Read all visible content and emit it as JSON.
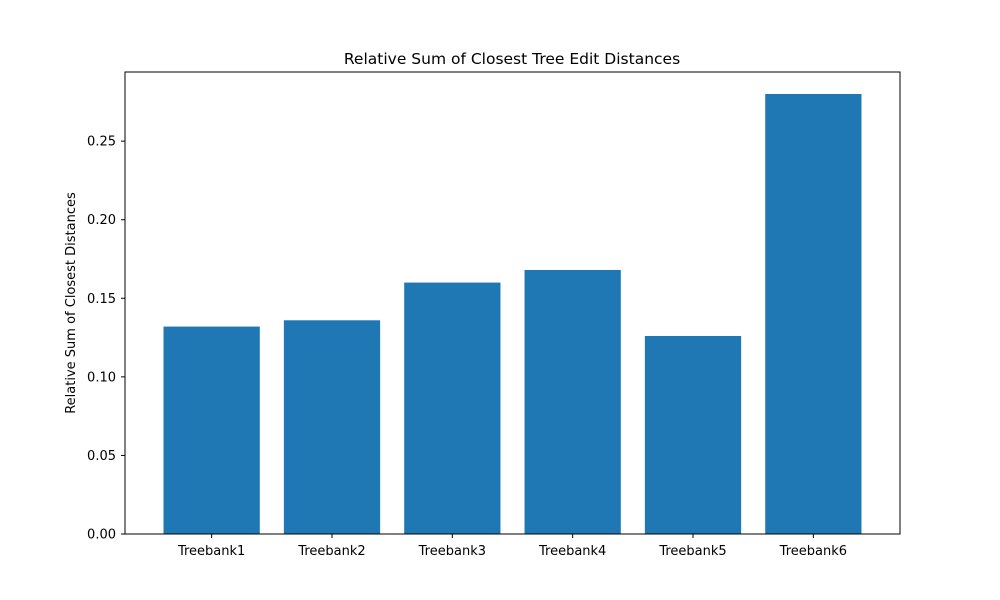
{
  "chart_data": {
    "type": "bar",
    "title": "Relative Sum of Closest Tree Edit Distances",
    "xlabel": "",
    "ylabel": "Relative Sum of Closest Distances",
    "categories": [
      "Treebank1",
      "Treebank2",
      "Treebank3",
      "Treebank4",
      "Treebank5",
      "Treebank6"
    ],
    "values": [
      0.132,
      0.136,
      0.16,
      0.168,
      0.126,
      0.28
    ],
    "ylim": [
      0,
      0.294
    ],
    "yticks": [
      0.0,
      0.05,
      0.1,
      0.15,
      0.2,
      0.25
    ],
    "ytick_labels": [
      "0.00",
      "0.05",
      "0.10",
      "0.15",
      "0.20",
      "0.25"
    ],
    "bar_color": "#1f77b4",
    "grid": false,
    "legend": "none"
  }
}
